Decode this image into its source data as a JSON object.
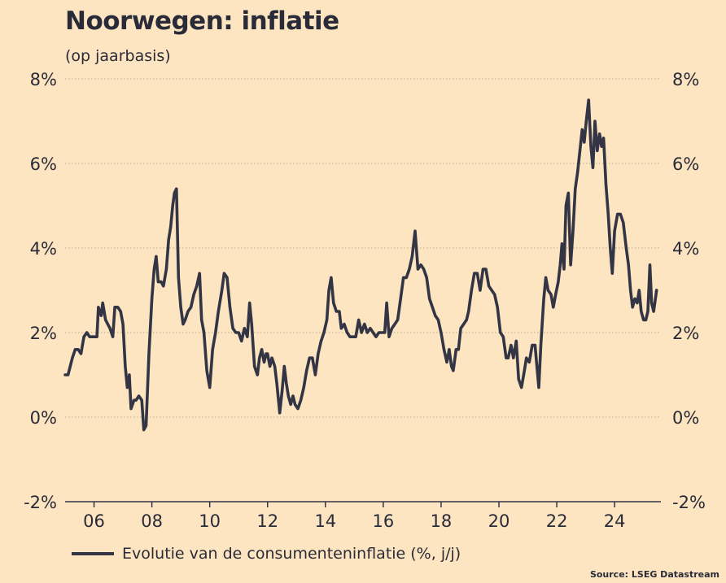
{
  "title": "Noorwegen: inflatie",
  "subtitle": "(op jaarbasis)",
  "source": "Source: LSEG Datastream",
  "colors": {
    "background": "#fce5c0",
    "line": "#333544",
    "grid": "#b8a98e",
    "text": "#2a2b38"
  },
  "chart_data": {
    "type": "line",
    "title": "Noorwegen: inflatie",
    "subtitle": "(op jaarbasis)",
    "xlabel": "",
    "ylabel": "",
    "xlim": [
      2005,
      2025.6
    ],
    "ylim": [
      -2,
      8
    ],
    "x_ticks": [
      2006,
      2008,
      2010,
      2012,
      2014,
      2016,
      2018,
      2020,
      2022,
      2024
    ],
    "x_tick_labels": [
      "06",
      "08",
      "10",
      "12",
      "14",
      "16",
      "18",
      "20",
      "22",
      "24"
    ],
    "y_ticks": [
      -2,
      0,
      2,
      4,
      6,
      8
    ],
    "y_tick_labels": [
      "-2%",
      "0%",
      "2%",
      "4%",
      "6%",
      "8%"
    ],
    "grid": "horizontal dotted",
    "legend_position": "bottom-left",
    "series": [
      {
        "name": "Evolutie van de consumenteninflatie (%, j/j)",
        "points": [
          [
            2005.0,
            1.0
          ],
          [
            2005.1,
            1.0
          ],
          [
            2005.25,
            1.4
          ],
          [
            2005.35,
            1.6
          ],
          [
            2005.45,
            1.6
          ],
          [
            2005.55,
            1.5
          ],
          [
            2005.65,
            1.9
          ],
          [
            2005.75,
            2.0
          ],
          [
            2005.85,
            1.9
          ],
          [
            2006.0,
            1.9
          ],
          [
            2006.1,
            1.9
          ],
          [
            2006.15,
            2.6
          ],
          [
            2006.25,
            2.4
          ],
          [
            2006.3,
            2.7
          ],
          [
            2006.4,
            2.3
          ],
          [
            2006.55,
            2.1
          ],
          [
            2006.65,
            1.9
          ],
          [
            2006.72,
            2.6
          ],
          [
            2006.82,
            2.6
          ],
          [
            2006.92,
            2.5
          ],
          [
            2007.0,
            2.2
          ],
          [
            2007.08,
            1.2
          ],
          [
            2007.15,
            0.7
          ],
          [
            2007.22,
            1.0
          ],
          [
            2007.28,
            0.2
          ],
          [
            2007.38,
            0.4
          ],
          [
            2007.45,
            0.4
          ],
          [
            2007.55,
            0.5
          ],
          [
            2007.65,
            0.4
          ],
          [
            2007.72,
            -0.3
          ],
          [
            2007.8,
            -0.2
          ],
          [
            2007.9,
            1.5
          ],
          [
            2008.0,
            2.8
          ],
          [
            2008.08,
            3.5
          ],
          [
            2008.15,
            3.8
          ],
          [
            2008.22,
            3.2
          ],
          [
            2008.32,
            3.2
          ],
          [
            2008.4,
            3.1
          ],
          [
            2008.5,
            3.5
          ],
          [
            2008.58,
            4.2
          ],
          [
            2008.65,
            4.5
          ],
          [
            2008.72,
            5.0
          ],
          [
            2008.78,
            5.3
          ],
          [
            2008.85,
            5.4
          ],
          [
            2008.92,
            3.3
          ],
          [
            2009.0,
            2.6
          ],
          [
            2009.08,
            2.2
          ],
          [
            2009.15,
            2.3
          ],
          [
            2009.25,
            2.5
          ],
          [
            2009.35,
            2.6
          ],
          [
            2009.45,
            2.9
          ],
          [
            2009.55,
            3.1
          ],
          [
            2009.65,
            3.4
          ],
          [
            2009.72,
            2.3
          ],
          [
            2009.8,
            2.0
          ],
          [
            2009.9,
            1.1
          ],
          [
            2010.0,
            0.7
          ],
          [
            2010.1,
            1.6
          ],
          [
            2010.2,
            2.0
          ],
          [
            2010.3,
            2.5
          ],
          [
            2010.42,
            3.0
          ],
          [
            2010.5,
            3.4
          ],
          [
            2010.6,
            3.3
          ],
          [
            2010.7,
            2.6
          ],
          [
            2010.8,
            2.1
          ],
          [
            2010.9,
            2.0
          ],
          [
            2011.0,
            2.0
          ],
          [
            2011.1,
            1.8
          ],
          [
            2011.2,
            2.1
          ],
          [
            2011.3,
            1.9
          ],
          [
            2011.38,
            2.7
          ],
          [
            2011.45,
            2.2
          ],
          [
            2011.55,
            1.2
          ],
          [
            2011.65,
            1.0
          ],
          [
            2011.72,
            1.4
          ],
          [
            2011.8,
            1.6
          ],
          [
            2011.88,
            1.3
          ],
          [
            2011.95,
            1.5
          ],
          [
            2012.0,
            1.5
          ],
          [
            2012.08,
            1.2
          ],
          [
            2012.15,
            1.4
          ],
          [
            2012.25,
            1.2
          ],
          [
            2012.32,
            0.8
          ],
          [
            2012.42,
            0.1
          ],
          [
            2012.5,
            0.6
          ],
          [
            2012.58,
            1.2
          ],
          [
            2012.65,
            0.8
          ],
          [
            2012.72,
            0.5
          ],
          [
            2012.8,
            0.3
          ],
          [
            2012.88,
            0.5
          ],
          [
            2012.95,
            0.3
          ],
          [
            2013.05,
            0.2
          ],
          [
            2013.15,
            0.4
          ],
          [
            2013.25,
            0.7
          ],
          [
            2013.35,
            1.1
          ],
          [
            2013.45,
            1.4
          ],
          [
            2013.55,
            1.4
          ],
          [
            2013.65,
            1.0
          ],
          [
            2013.75,
            1.5
          ],
          [
            2013.85,
            1.8
          ],
          [
            2013.95,
            2.0
          ],
          [
            2014.05,
            2.3
          ],
          [
            2014.12,
            3.0
          ],
          [
            2014.2,
            3.3
          ],
          [
            2014.28,
            2.7
          ],
          [
            2014.38,
            2.5
          ],
          [
            2014.48,
            2.5
          ],
          [
            2014.55,
            2.1
          ],
          [
            2014.65,
            2.2
          ],
          [
            2014.75,
            2.0
          ],
          [
            2014.85,
            1.9
          ],
          [
            2014.95,
            1.9
          ],
          [
            2015.05,
            1.9
          ],
          [
            2015.15,
            2.3
          ],
          [
            2015.25,
            2.0
          ],
          [
            2015.35,
            2.2
          ],
          [
            2015.45,
            2.0
          ],
          [
            2015.55,
            2.1
          ],
          [
            2015.65,
            2.0
          ],
          [
            2015.75,
            1.9
          ],
          [
            2015.85,
            2.0
          ],
          [
            2015.95,
            2.0
          ],
          [
            2016.05,
            2.0
          ],
          [
            2016.12,
            2.7
          ],
          [
            2016.2,
            1.9
          ],
          [
            2016.3,
            2.1
          ],
          [
            2016.4,
            2.2
          ],
          [
            2016.5,
            2.3
          ],
          [
            2016.6,
            2.8
          ],
          [
            2016.7,
            3.3
          ],
          [
            2016.8,
            3.3
          ],
          [
            2016.9,
            3.5
          ],
          [
            2017.0,
            3.8
          ],
          [
            2017.1,
            4.4
          ],
          [
            2017.2,
            3.5
          ],
          [
            2017.3,
            3.6
          ],
          [
            2017.4,
            3.5
          ],
          [
            2017.5,
            3.3
          ],
          [
            2017.6,
            2.8
          ],
          [
            2017.7,
            2.6
          ],
          [
            2017.8,
            2.4
          ],
          [
            2017.9,
            2.3
          ],
          [
            2018.0,
            2.0
          ],
          [
            2018.1,
            1.6
          ],
          [
            2018.2,
            1.3
          ],
          [
            2018.28,
            1.6
          ],
          [
            2018.36,
            1.2
          ],
          [
            2018.42,
            1.1
          ],
          [
            2018.52,
            1.6
          ],
          [
            2018.6,
            1.6
          ],
          [
            2018.68,
            2.1
          ],
          [
            2018.78,
            2.2
          ],
          [
            2018.88,
            2.3
          ],
          [
            2018.95,
            2.5
          ],
          [
            2019.05,
            3.0
          ],
          [
            2019.15,
            3.4
          ],
          [
            2019.25,
            3.4
          ],
          [
            2019.35,
            3.0
          ],
          [
            2019.45,
            3.5
          ],
          [
            2019.55,
            3.5
          ],
          [
            2019.65,
            3.1
          ],
          [
            2019.75,
            3.0
          ],
          [
            2019.85,
            2.9
          ],
          [
            2019.95,
            2.6
          ],
          [
            2020.05,
            2.0
          ],
          [
            2020.15,
            1.9
          ],
          [
            2020.25,
            1.4
          ],
          [
            2020.32,
            1.4
          ],
          [
            2020.42,
            1.7
          ],
          [
            2020.5,
            1.4
          ],
          [
            2020.6,
            1.8
          ],
          [
            2020.68,
            0.9
          ],
          [
            2020.78,
            0.7
          ],
          [
            2020.88,
            1.1
          ],
          [
            2020.95,
            1.4
          ],
          [
            2021.05,
            1.3
          ],
          [
            2021.15,
            1.7
          ],
          [
            2021.25,
            1.7
          ],
          [
            2021.3,
            1.3
          ],
          [
            2021.38,
            0.7
          ],
          [
            2021.45,
            1.7
          ],
          [
            2021.55,
            2.8
          ],
          [
            2021.62,
            3.3
          ],
          [
            2021.7,
            3.0
          ],
          [
            2021.8,
            2.9
          ],
          [
            2021.88,
            2.6
          ],
          [
            2021.96,
            2.9
          ],
          [
            2022.05,
            3.2
          ],
          [
            2022.12,
            3.6
          ],
          [
            2022.18,
            4.1
          ],
          [
            2022.25,
            3.5
          ],
          [
            2022.32,
            5.0
          ],
          [
            2022.4,
            5.3
          ],
          [
            2022.48,
            3.6
          ],
          [
            2022.56,
            4.4
          ],
          [
            2022.64,
            5.4
          ],
          [
            2022.72,
            5.8
          ],
          [
            2022.8,
            6.3
          ],
          [
            2022.88,
            6.8
          ],
          [
            2022.95,
            6.5
          ],
          [
            2023.02,
            7.0
          ],
          [
            2023.1,
            7.5
          ],
          [
            2023.18,
            6.4
          ],
          [
            2023.25,
            5.9
          ],
          [
            2023.32,
            7.0
          ],
          [
            2023.4,
            6.3
          ],
          [
            2023.48,
            6.7
          ],
          [
            2023.55,
            6.4
          ],
          [
            2023.62,
            6.6
          ],
          [
            2023.7,
            5.5
          ],
          [
            2023.78,
            4.8
          ],
          [
            2023.85,
            4.0
          ],
          [
            2023.92,
            3.4
          ],
          [
            2024.0,
            4.4
          ],
          [
            2024.1,
            4.8
          ],
          [
            2024.2,
            4.8
          ],
          [
            2024.3,
            4.6
          ],
          [
            2024.4,
            4.0
          ],
          [
            2024.48,
            3.6
          ],
          [
            2024.55,
            3.0
          ],
          [
            2024.62,
            2.6
          ],
          [
            2024.7,
            2.8
          ],
          [
            2024.78,
            2.7
          ],
          [
            2024.85,
            3.0
          ],
          [
            2024.92,
            2.5
          ],
          [
            2025.0,
            2.3
          ],
          [
            2025.08,
            2.3
          ],
          [
            2025.15,
            2.5
          ],
          [
            2025.22,
            3.6
          ],
          [
            2025.28,
            2.7
          ],
          [
            2025.35,
            2.5
          ],
          [
            2025.45,
            3.0
          ]
        ]
      }
    ]
  }
}
